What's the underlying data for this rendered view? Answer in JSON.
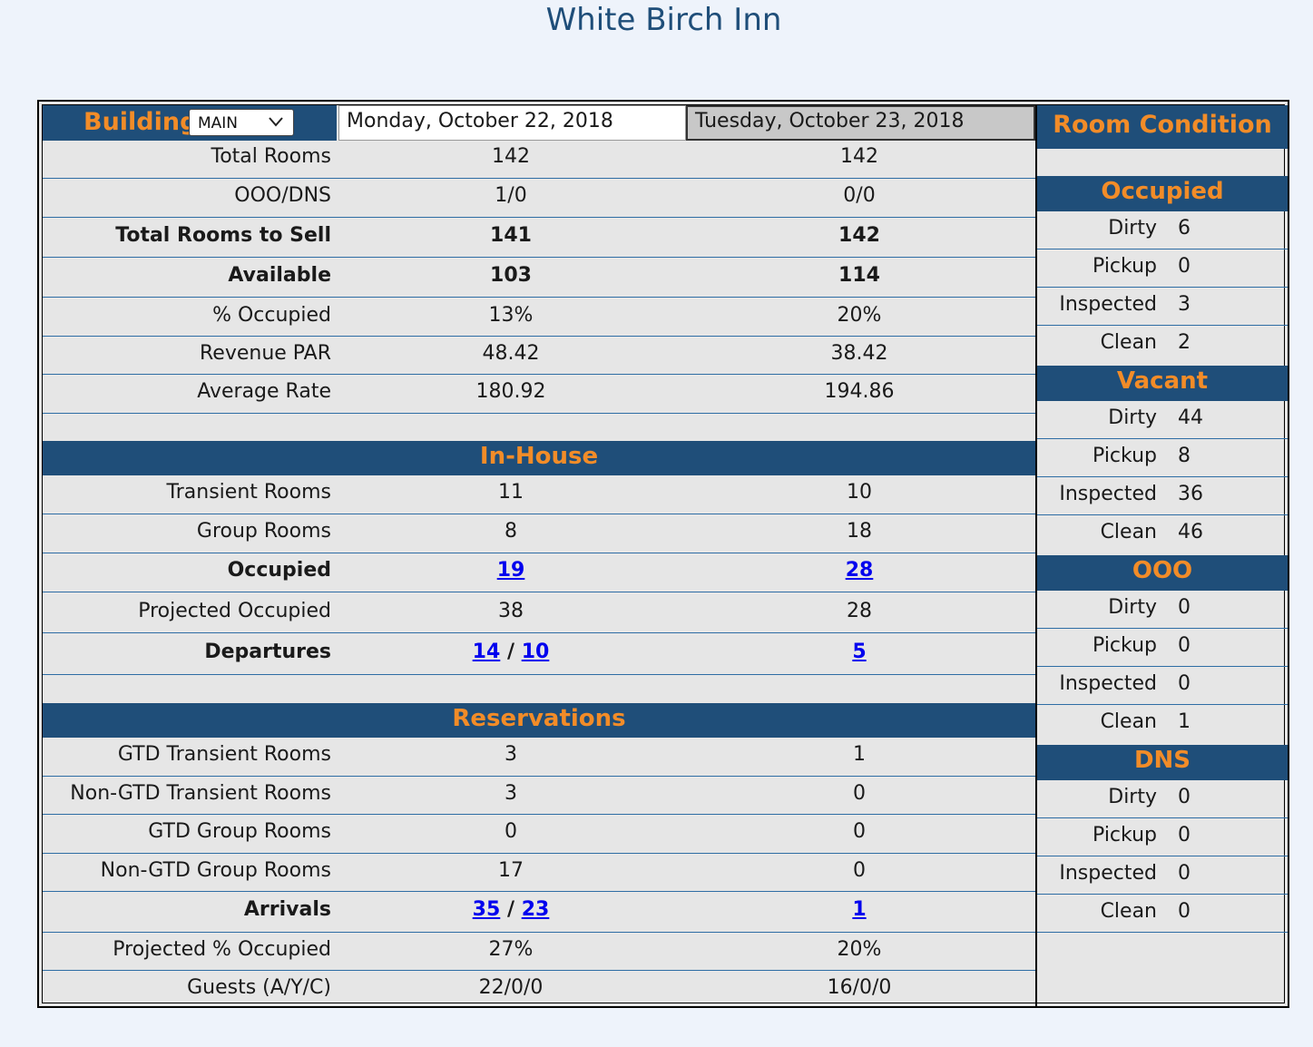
{
  "page_title": "White Birch Inn",
  "header": {
    "building_label": "Building:",
    "building_value": "MAIN",
    "date1": "Monday, October 22, 2018",
    "date2": "Tuesday, October 23, 2018"
  },
  "stats": [
    {
      "label": "Total Rooms",
      "v1": "142",
      "v2": "142"
    },
    {
      "label": "OOO/DNS",
      "v1": "1/0",
      "v2": "0/0"
    },
    {
      "label": "Total Rooms to Sell",
      "v1": "141",
      "v2": "142"
    },
    {
      "label": "Available",
      "v1": "103",
      "v2": "114"
    },
    {
      "label": "% Occupied",
      "v1": "13%",
      "v2": "20%"
    },
    {
      "label": "Revenue PAR",
      "v1": "48.42",
      "v2": "38.42"
    },
    {
      "label": "Average Rate",
      "v1": "180.92",
      "v2": "194.86"
    }
  ],
  "in_house": {
    "title": "In-House",
    "rows": [
      {
        "label": "Transient Rooms",
        "v1": "11",
        "v2": "10"
      },
      {
        "label": "Group Rooms",
        "v1": "8",
        "v2": "18"
      },
      {
        "label": "Occupied",
        "v1": "19",
        "v2": "28"
      },
      {
        "label": "Projected Occupied",
        "v1": "38",
        "v2": "28"
      },
      {
        "label": "Departures",
        "v1a": "14",
        "v1b": "10",
        "sep": "/",
        "v2": "5"
      }
    ]
  },
  "reservations": {
    "title": "Reservations",
    "rows": [
      {
        "label": "GTD Transient Rooms",
        "v1": "3",
        "v2": "1"
      },
      {
        "label": "Non-GTD Transient Rooms",
        "v1": "3",
        "v2": "0"
      },
      {
        "label": "GTD Group Rooms",
        "v1": "0",
        "v2": "0"
      },
      {
        "label": "Non-GTD Group Rooms",
        "v1": "17",
        "v2": "0"
      },
      {
        "label": "Arrivals",
        "v1a": "35",
        "v1b": "23",
        "sep": "/",
        "v2": "1"
      },
      {
        "label": "Projected % Occupied",
        "v1": "27%",
        "v2": "20%"
      },
      {
        "label": "Guests (A/Y/C)",
        "v1": "22/0/0",
        "v2": "16/0/0"
      }
    ]
  },
  "room_condition": {
    "title": "Room Condition",
    "groups": [
      {
        "title": "Occupied",
        "rows": [
          {
            "label": "Dirty",
            "value": "6"
          },
          {
            "label": "Pickup",
            "value": "0"
          },
          {
            "label": "Inspected",
            "value": "3"
          },
          {
            "label": "Clean",
            "value": "2"
          }
        ]
      },
      {
        "title": "Vacant",
        "rows": [
          {
            "label": "Dirty",
            "value": "44"
          },
          {
            "label": "Pickup",
            "value": "8"
          },
          {
            "label": "Inspected",
            "value": "36"
          },
          {
            "label": "Clean",
            "value": "46"
          }
        ]
      },
      {
        "title": "OOO",
        "rows": [
          {
            "label": "Dirty",
            "value": "0"
          },
          {
            "label": "Pickup",
            "value": "0"
          },
          {
            "label": "Inspected",
            "value": "0"
          },
          {
            "label": "Clean",
            "value": "1"
          }
        ]
      },
      {
        "title": "DNS",
        "rows": [
          {
            "label": "Dirty",
            "value": "0"
          },
          {
            "label": "Pickup",
            "value": "0"
          },
          {
            "label": "Inspected",
            "value": "0"
          },
          {
            "label": "Clean",
            "value": "0"
          }
        ]
      }
    ]
  },
  "colors": {
    "header_bg": "#1f4e79",
    "accent": "#f28c28",
    "link": "#0000ee"
  }
}
